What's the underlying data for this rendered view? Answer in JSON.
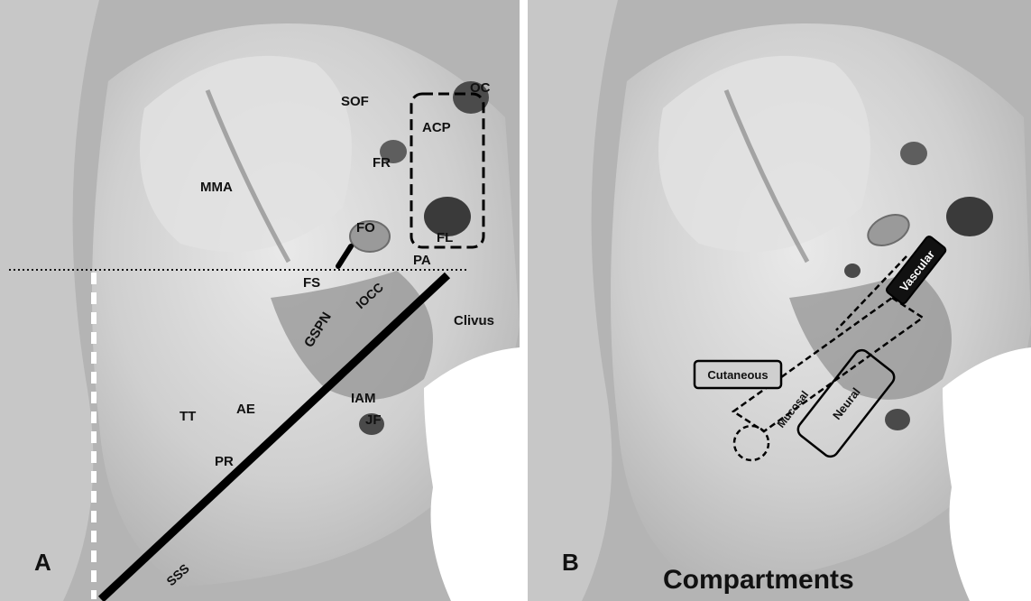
{
  "panel_a": {
    "letter": "A",
    "labels": {
      "sof": "SOF",
      "oc": "OC",
      "acp": "ACP",
      "fr": "FR",
      "mma": "MMA",
      "fo": "FO",
      "fl": "FL",
      "pa": "PA",
      "fs": "FS",
      "iocc": "IOCC",
      "gspn": "GSPN",
      "clivus": "Clivus",
      "tt": "TT",
      "ae": "AE",
      "iam": "IAM",
      "jf": "JF",
      "pr": "PR",
      "sss": "SSS"
    }
  },
  "panel_b": {
    "letter": "B",
    "title": "Compartments",
    "labels": {
      "vascular": "Vascular",
      "cutaneous": "Cutaneous",
      "mucosal": "Mucosal",
      "neural": "Neural"
    }
  }
}
